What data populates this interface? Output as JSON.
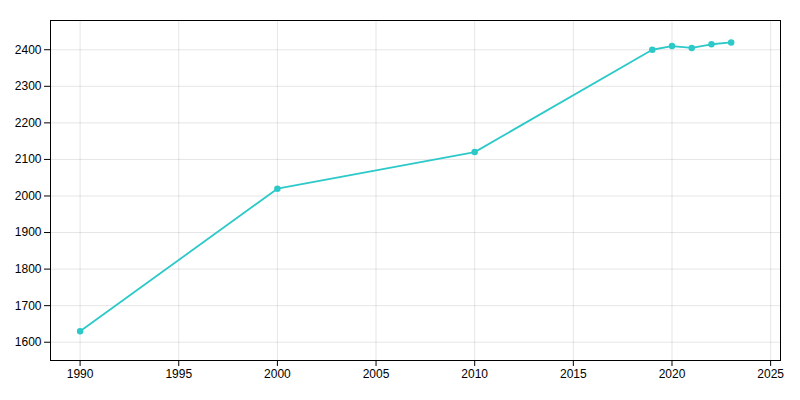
{
  "chart_data": {
    "type": "line",
    "x": [
      1990,
      2000,
      2010,
      2019,
      2020,
      2021,
      2022,
      2023
    ],
    "values": [
      1630,
      2020,
      2120,
      2400,
      2410,
      2405,
      2415,
      2420
    ],
    "color": "#2DC9C9",
    "marker": "circle",
    "xlim": [
      1988.5,
      2025.5
    ],
    "ylim": [
      1550,
      2480
    ],
    "xticks": [
      1990,
      1995,
      2000,
      2005,
      2010,
      2015,
      2020,
      2025
    ],
    "yticks": [
      1600,
      1700,
      1800,
      1900,
      2000,
      2100,
      2200,
      2300,
      2400
    ],
    "grid": true
  }
}
